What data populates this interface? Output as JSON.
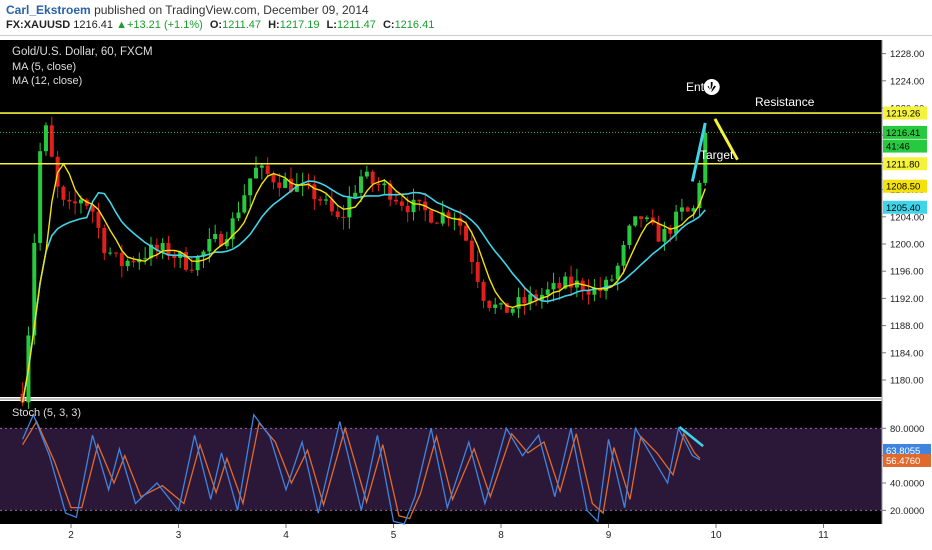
{
  "header": {
    "author": "Carl_Ekstroem",
    "published": "published on TradingView.com, December 09, 2014",
    "symbol": "FX:XAUUSD",
    "last": "1216.41",
    "change": "+13.21 (+1.1%)",
    "open_label": "O:",
    "open": "1211.47",
    "high_label": "H:",
    "high": "1217.19",
    "low_label": "L:",
    "low": "1211.47",
    "close_label": "C:",
    "close": "1216.41"
  },
  "legend": {
    "title": "Gold/U.S. Dollar, 60, FXCM",
    "ma5": "MA (5, close)",
    "ma12": "MA (12, close)",
    "stoch": "Stoch (5, 3, 3)"
  },
  "annotations": {
    "entry": "Entry",
    "resistance": "Resistance",
    "target": "Target"
  },
  "colors": {
    "background": "#000000",
    "up_candle": "#27c93f",
    "down_candle": "#e0201e",
    "ma5": "#f5e20a",
    "ma12": "#3fd4e8",
    "level_line": "#f5f23a",
    "stoch_k": "#3f84e0",
    "stoch_d": "#e06a2e",
    "stoch_band": "#2b1838"
  },
  "chart_data": [
    {
      "type": "candlestick",
      "title": "Gold/U.S. Dollar, 60, FXCM",
      "ylim": [
        1177.5,
        1230
      ],
      "y_ticks": [
        "1180.00",
        "1184.00",
        "1188.00",
        "1192.00",
        "1196.00",
        "1200.00",
        "1204.00",
        "1208.00",
        "1212.00",
        "1216.00",
        "1220.00",
        "1224.00",
        "1228.00"
      ],
      "x_ticks": [
        "2",
        "3",
        "4",
        "5",
        "8",
        "9",
        "10",
        "11"
      ],
      "close_path": [
        [
          1.55,
          1178
        ],
        [
          1.62,
          1190
        ],
        [
          1.7,
          1212
        ],
        [
          1.75,
          1218
        ],
        [
          1.8,
          1214
        ],
        [
          1.9,
          1206
        ],
        [
          2.0,
          1205
        ],
        [
          2.1,
          1207
        ],
        [
          2.2,
          1205
        ],
        [
          2.3,
          1200
        ],
        [
          2.45,
          1197
        ],
        [
          2.6,
          1198
        ],
        [
          2.75,
          1199
        ],
        [
          2.9,
          1199
        ],
        [
          3.0,
          1198
        ],
        [
          3.1,
          1197
        ],
        [
          3.2,
          1198
        ],
        [
          3.3,
          1200
        ],
        [
          3.4,
          1201
        ],
        [
          3.5,
          1203
        ],
        [
          3.6,
          1207
        ],
        [
          3.7,
          1211
        ],
        [
          3.85,
          1210
        ],
        [
          4.0,
          1209
        ],
        [
          4.15,
          1208
        ],
        [
          4.3,
          1207
        ],
        [
          4.4,
          1205
        ],
        [
          4.5,
          1203
        ],
        [
          4.6,
          1207
        ],
        [
          4.7,
          1210
        ],
        [
          4.8,
          1209
        ],
        [
          4.95,
          1208
        ],
        [
          5.1,
          1206
        ],
        [
          5.25,
          1205
        ],
        [
          5.4,
          1204
        ],
        [
          5.55,
          1205
        ],
        [
          5.65,
          1202
        ],
        [
          5.75,
          1197
        ],
        [
          5.85,
          1192
        ],
        [
          6.0,
          1190
        ],
        [
          6.15,
          1191
        ],
        [
          6.3,
          1192
        ],
        [
          6.45,
          1193
        ],
        [
          6.6,
          1194
        ],
        [
          6.75,
          1194
        ],
        [
          6.9,
          1193
        ],
        [
          7.0,
          1194
        ],
        [
          7.1,
          1197
        ],
        [
          7.2,
          1202
        ],
        [
          7.3,
          1204
        ],
        [
          7.4,
          1202
        ],
        [
          7.5,
          1201
        ],
        [
          7.6,
          1203
        ],
        [
          7.7,
          1205
        ],
        [
          7.78,
          1204
        ],
        [
          7.85,
          1210
        ],
        [
          7.9,
          1216
        ]
      ],
      "series": [
        {
          "name": "MA (5, close)",
          "last_value": 1208.5
        },
        {
          "name": "MA (12, close)",
          "last_value": 1205.4
        }
      ],
      "price_labels": [
        {
          "label": "1219.26",
          "value": 1219.26,
          "kind": "resistance"
        },
        {
          "label": "1216.41",
          "value": 1216.41,
          "kind": "last-price"
        },
        {
          "label": "41:46",
          "value": 1214.4,
          "kind": "countdown"
        },
        {
          "label": "1211.80",
          "value": 1211.8,
          "kind": "target"
        },
        {
          "label": "1208.50",
          "value": 1208.5,
          "kind": "ma5"
        },
        {
          "label": "1205.40",
          "value": 1205.4,
          "kind": "ma12"
        }
      ],
      "levels": [
        {
          "name": "Resistance",
          "value": 1219.26
        },
        {
          "name": "Target",
          "value": 1211.8
        }
      ]
    },
    {
      "type": "line",
      "title": "Stoch (5, 3, 3)",
      "ylim": [
        10,
        100
      ],
      "y_ticks": [
        "80.0000",
        "60.0000",
        "40.0000",
        "20.0000"
      ],
      "band": [
        20,
        80
      ],
      "k_path": [
        [
          1.55,
          72
        ],
        [
          1.65,
          90
        ],
        [
          1.8,
          60
        ],
        [
          1.95,
          18
        ],
        [
          2.05,
          15
        ],
        [
          2.2,
          75
        ],
        [
          2.35,
          35
        ],
        [
          2.45,
          65
        ],
        [
          2.6,
          25
        ],
        [
          2.8,
          40
        ],
        [
          3.0,
          20
        ],
        [
          3.15,
          75
        ],
        [
          3.3,
          28
        ],
        [
          3.4,
          62
        ],
        [
          3.55,
          20
        ],
        [
          3.7,
          90
        ],
        [
          3.85,
          74
        ],
        [
          4.0,
          35
        ],
        [
          4.15,
          70
        ],
        [
          4.3,
          18
        ],
        [
          4.5,
          85
        ],
        [
          4.7,
          20
        ],
        [
          4.85,
          75
        ],
        [
          5.0,
          12
        ],
        [
          5.1,
          10
        ],
        [
          5.2,
          30
        ],
        [
          5.35,
          80
        ],
        [
          5.5,
          22
        ],
        [
          5.7,
          70
        ],
        [
          5.85,
          25
        ],
        [
          6.05,
          80
        ],
        [
          6.2,
          60
        ],
        [
          6.35,
          75
        ],
        [
          6.5,
          30
        ],
        [
          6.65,
          80
        ],
        [
          6.8,
          20
        ],
        [
          6.9,
          12
        ],
        [
          7.0,
          72
        ],
        [
          7.15,
          22
        ],
        [
          7.25,
          80
        ],
        [
          7.4,
          60
        ],
        [
          7.55,
          40
        ],
        [
          7.65,
          80
        ],
        [
          7.78,
          60
        ],
        [
          7.85,
          57
        ]
      ],
      "d_path": [
        [
          1.55,
          68
        ],
        [
          1.68,
          85
        ],
        [
          1.85,
          55
        ],
        [
          2.0,
          22
        ],
        [
          2.1,
          22
        ],
        [
          2.25,
          68
        ],
        [
          2.4,
          40
        ],
        [
          2.5,
          60
        ],
        [
          2.65,
          30
        ],
        [
          2.85,
          38
        ],
        [
          3.05,
          25
        ],
        [
          3.2,
          68
        ],
        [
          3.35,
          33
        ],
        [
          3.45,
          58
        ],
        [
          3.6,
          25
        ],
        [
          3.75,
          84
        ],
        [
          3.9,
          70
        ],
        [
          4.05,
          40
        ],
        [
          4.2,
          64
        ],
        [
          4.35,
          24
        ],
        [
          4.55,
          80
        ],
        [
          4.75,
          26
        ],
        [
          4.9,
          68
        ],
        [
          5.05,
          16
        ],
        [
          5.15,
          14
        ],
        [
          5.25,
          32
        ],
        [
          5.4,
          74
        ],
        [
          5.55,
          28
        ],
        [
          5.75,
          65
        ],
        [
          5.9,
          30
        ],
        [
          6.1,
          76
        ],
        [
          6.25,
          62
        ],
        [
          6.4,
          70
        ],
        [
          6.55,
          34
        ],
        [
          6.7,
          76
        ],
        [
          6.85,
          25
        ],
        [
          6.95,
          18
        ],
        [
          7.05,
          66
        ],
        [
          7.2,
          28
        ],
        [
          7.3,
          74
        ],
        [
          7.45,
          62
        ],
        [
          7.6,
          46
        ],
        [
          7.7,
          76
        ],
        [
          7.8,
          62
        ],
        [
          7.85,
          58
        ]
      ],
      "series": [
        {
          "name": "%K",
          "last_value": 63.8055
        },
        {
          "name": "%D",
          "last_value": 56.476
        }
      ],
      "value_labels": [
        {
          "label": "63.8055",
          "value": 63.8055,
          "kind": "k"
        },
        {
          "label": "56.4760",
          "value": 56.476,
          "kind": "d"
        }
      ]
    }
  ]
}
